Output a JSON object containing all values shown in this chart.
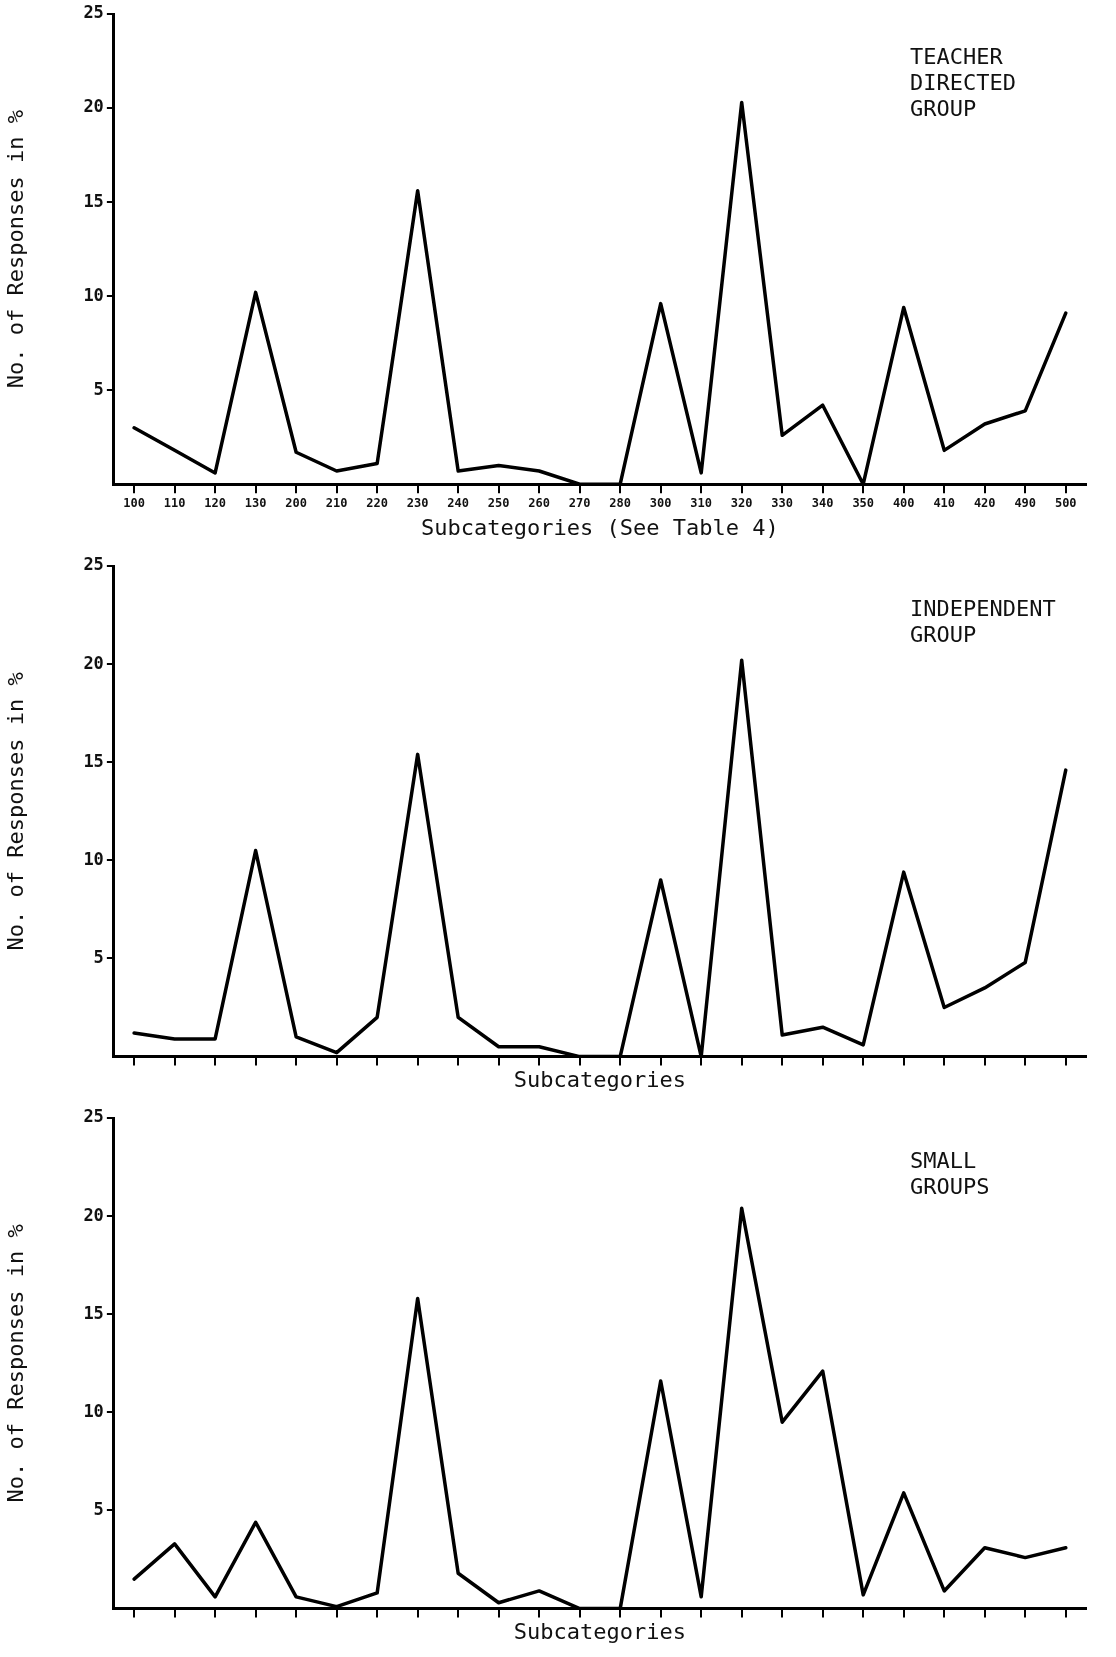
{
  "chart_data": [
    {
      "type": "line",
      "title": "TEACHER\nDIRECTED\nGROUP",
      "xlabel": "Subcategories (See Table 4)",
      "ylabel": "No. of Responses in %",
      "categories": [
        "100",
        "110",
        "120",
        "130",
        "200",
        "210",
        "220",
        "230",
        "240",
        "250",
        "260",
        "270",
        "280",
        "300",
        "310",
        "320",
        "330",
        "340",
        "350",
        "400",
        "410",
        "420",
        "490",
        "500"
      ],
      "series": [
        {
          "color": "#000000",
          "values": [
            3.0,
            1.8,
            0.6,
            10.2,
            1.7,
            0.7,
            1.1,
            15.6,
            0.7,
            1.0,
            0.7,
            0,
            0,
            9.6,
            0.6,
            20.3,
            2.6,
            4.2,
            0,
            9.4,
            1.8,
            3.2,
            3.9,
            9.1
          ]
        }
      ],
      "ylim": [
        0,
        25
      ],
      "yticks": [
        5,
        10,
        15,
        20,
        25
      ],
      "grid": false,
      "marker": "none"
    },
    {
      "type": "line",
      "title": "INDEPENDENT\nGROUP",
      "xlabel": "Subcategories",
      "ylabel": "No. of Responses in %",
      "categories": [
        "100",
        "110",
        "120",
        "130",
        "200",
        "210",
        "220",
        "230",
        "240",
        "250",
        "260",
        "270",
        "280",
        "300",
        "310",
        "320",
        "330",
        "340",
        "350",
        "400",
        "410",
        "420",
        "490",
        "500"
      ],
      "series": [
        {
          "color": "#000000",
          "values": [
            1.2,
            0.9,
            0.9,
            10.5,
            1.0,
            0.2,
            2.0,
            15.4,
            2.0,
            0.5,
            0.5,
            0,
            0,
            9.0,
            0,
            20.2,
            1.1,
            1.5,
            0.6,
            9.4,
            2.5,
            3.5,
            4.8,
            14.6
          ]
        }
      ],
      "ylim": [
        0,
        25
      ],
      "yticks": [
        5,
        10,
        15,
        20,
        25
      ],
      "grid": false,
      "marker": "none",
      "tick_labels": "y"
    },
    {
      "type": "line",
      "title": "SMALL\nGROUPS",
      "xlabel": "Subcategories",
      "ylabel": "No. of Responses in %",
      "categories": [
        "100",
        "110",
        "120",
        "130",
        "200",
        "210",
        "220",
        "230",
        "240",
        "250",
        "260",
        "270",
        "280",
        "300",
        "310",
        "320",
        "330",
        "340",
        "350",
        "400",
        "410",
        "420",
        "490",
        "500"
      ],
      "series": [
        {
          "color": "#000000",
          "values": [
            1.5,
            3.3,
            0.6,
            4.4,
            0.6,
            0.1,
            0.8,
            15.8,
            1.8,
            0.3,
            0.9,
            0,
            0,
            11.6,
            0.6,
            20.4,
            9.5,
            12.1,
            0.7,
            5.9,
            0.9,
            3.1,
            2.6,
            3.1
          ]
        }
      ],
      "ylim": [
        0,
        25
      ],
      "yticks": [
        5,
        10,
        15,
        20,
        25
      ],
      "grid": false,
      "marker": "none",
      "tick_labels": "y"
    }
  ]
}
